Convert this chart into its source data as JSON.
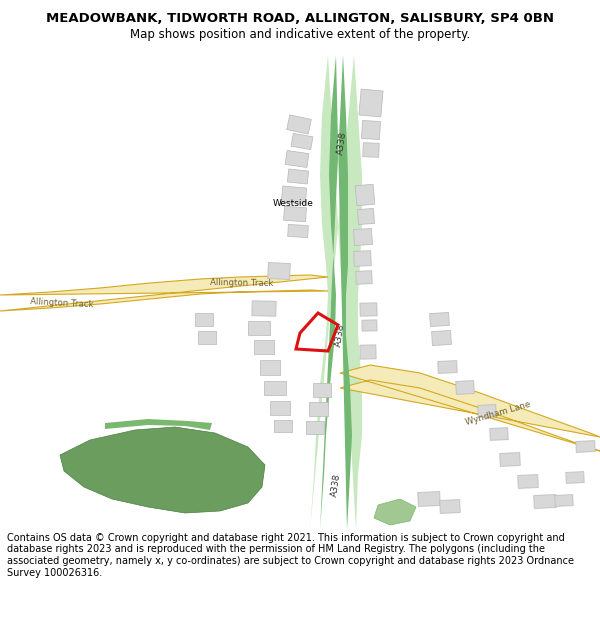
{
  "title": "MEADOWBANK, TIDWORTH ROAD, ALLINGTON, SALISBURY, SP4 0BN",
  "subtitle": "Map shows position and indicative extent of the property.",
  "footer": "Contains OS data © Crown copyright and database right 2021. This information is subject to Crown copyright and database rights 2023 and is reproduced with the permission of\nHM Land Registry. The polygons (including the associated geometry, namely x, y co-ordinates) are subject to Crown copyright and database rights 2023 Ordnance Survey\n100026316.",
  "road_a338_light": "#c8e8c0",
  "road_a338_dark": "#72b872",
  "road_yellow_fill": "#f5ebb8",
  "road_yellow_border": "#d4a820",
  "building_fill": "#d8d8d8",
  "building_edge": "#b8b8b8",
  "green_dark": "#6b9e5e",
  "green_mid": "#7ab870",
  "green_light": "#a0c890",
  "red_color": "#dd1111",
  "text_road": "#333333",
  "text_track": "#706030"
}
